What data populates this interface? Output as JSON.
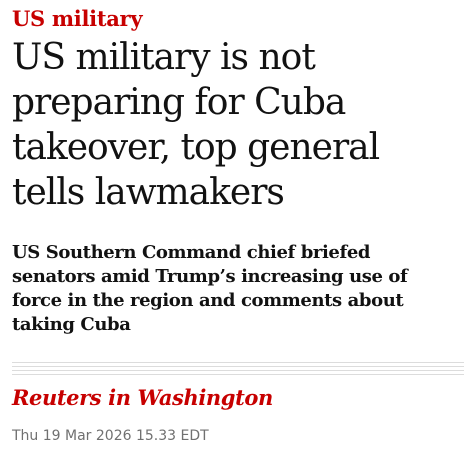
{
  "article": {
    "kicker": "US military",
    "headline": "US military is not preparing for Cuba takeover, top general tells lawmakers",
    "standfirst": "US Southern Command chief briefed senators amid Trump’s increasing use of force in the region and comments about taking Cuba",
    "byline": "Reuters in Washington",
    "dateline": "Thu 19 Mar 2026 15.33 EDT"
  },
  "colors": {
    "accent": "#c70000",
    "text": "#121212",
    "meta": "#707070",
    "rule": "#dcdcdc"
  }
}
